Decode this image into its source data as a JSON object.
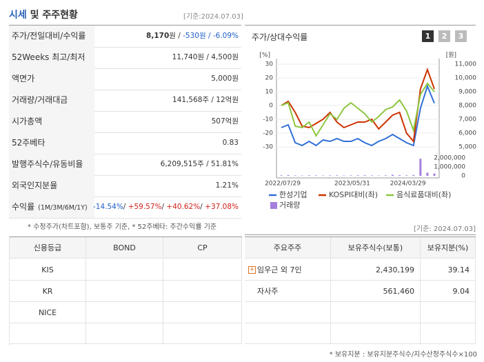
{
  "header": {
    "title_highlight": "시세",
    "title_rest": "및 주주현황",
    "date": "[기준:2024.07.03]"
  },
  "summary": {
    "rows": [
      {
        "label": "주가/전일대비/수익률",
        "segments": [
          "8,170",
          "원 / ",
          "-530원",
          " / -6.09%"
        ]
      },
      {
        "label": "52Weeks 최고/최저",
        "segments": [
          "11,740원 / 4,500원"
        ]
      },
      {
        "label": "액면가",
        "segments": [
          "5,000원"
        ]
      },
      {
        "label": "거래량/거래대금",
        "segments": [
          "141,568주 / 12억원"
        ]
      },
      {
        "label": "시가총액",
        "segments": [
          "507억원"
        ]
      },
      {
        "label": "52주베타",
        "segments": [
          "0.83"
        ]
      },
      {
        "label": "발행주식수/유동비율",
        "segments": [
          "6,209,515주 / 51.81%"
        ]
      },
      {
        "label": "외국인지분율",
        "segments": [
          "1.21%"
        ]
      },
      {
        "label": "수익률",
        "label_small": "(1M/3M/6M/1Y)",
        "segments": [
          "-14.54%",
          "/ ",
          "+59.57%",
          "/ ",
          "+40.62%",
          "/ ",
          "+37.08%"
        ]
      }
    ],
    "footnote": "* 수정주가(차트포함), 보통주 기준, * 52주베타: 주간수익률 기준"
  },
  "chart_data": {
    "type": "line",
    "title": "주가/상대수익률",
    "tabs": [
      "1",
      "2",
      "3"
    ],
    "y_unit": "[%]",
    "y2_unit": "[원]",
    "categories": [
      "2022/07/29",
      null,
      null,
      null,
      null,
      null,
      null,
      null,
      null,
      null,
      "2023/05/31",
      null,
      null,
      null,
      null,
      null,
      null,
      null,
      "2024/03/29",
      null,
      null,
      null,
      null
    ],
    "series": [
      {
        "name": "한성기업",
        "color": "#2f6fd6",
        "axis": "y2",
        "values": [
          6400,
          6600,
          5300,
          5100,
          5400,
          5100,
          5500,
          5400,
          5600,
          5400,
          5400,
          5600,
          5300,
          5100,
          5400,
          5600,
          5900,
          5600,
          5300,
          5100,
          7800,
          9400,
          8170
        ]
      },
      {
        "name": "KOSPI대비(좌)",
        "color": "#cc3300",
        "values": [
          0,
          3,
          -5,
          -15,
          -16,
          -13,
          -10,
          -5,
          -12,
          -16,
          -14,
          -12,
          -12,
          -10,
          -17,
          -12,
          -7,
          -5,
          -20,
          -26,
          12,
          26,
          12
        ]
      },
      {
        "name": "음식료품대비(좌)",
        "color": "#8cc63f",
        "values": [
          0,
          2,
          -15,
          -16,
          -12,
          -22,
          -14,
          -6,
          -10,
          -2,
          2,
          -2,
          -6,
          -12,
          -8,
          -3,
          -1,
          4,
          -4,
          -18,
          8,
          16,
          10
        ]
      },
      {
        "name": "거래량",
        "color": "#a57fdc",
        "axis": "y3",
        "values": [
          60000,
          80000,
          50000,
          40000,
          60000,
          50000,
          40000,
          50000,
          60000,
          40000,
          50000,
          60000,
          70000,
          50000,
          40000,
          60000,
          120000,
          80000,
          60000,
          100000,
          1900000,
          350000,
          250000
        ]
      }
    ],
    "ylim": [
      -30,
      30
    ],
    "yticks": [
      30,
      20,
      10,
      0,
      -10,
      -20,
      -30
    ],
    "y2lim": [
      5000,
      11000
    ],
    "y2ticks": [
      {
        "value": 11000,
        "label": "11,000"
      },
      {
        "value": 10000,
        "label": "10,000"
      },
      {
        "value": 9000,
        "label": "9,000"
      },
      {
        "value": 8000,
        "label": "8,000"
      },
      {
        "value": 7000,
        "label": "7,000"
      },
      {
        "value": 6000,
        "label": "6,000"
      },
      {
        "value": 5000,
        "label": "5,000"
      }
    ],
    "y3lim": [
      0,
      2000000
    ],
    "y3ticks": [
      {
        "value": 2000000,
        "label": "2,000,000"
      },
      {
        "value": 1000000,
        "label": "1,000,000"
      },
      0
    ],
    "grid": true,
    "date": "[기준: 2024.07.03]"
  },
  "credit": {
    "header": [
      "신용등급",
      "BOND",
      "CP"
    ],
    "rows": [
      [
        "KIS"
      ],
      [
        "KR"
      ],
      [
        "NICE"
      ]
    ]
  },
  "holders": {
    "header": [
      "주요주주",
      "보유주식수(보통)",
      "보유지분(%)"
    ],
    "rows": [
      [
        "임우근 외 7인",
        "2,430,199",
        "39.14"
      ],
      [
        "자사주",
        "561,460",
        "9.04"
      ]
    ],
    "footnote": "* 보유지분 : 보유지분주식수/지수산정주식수×100"
  }
}
